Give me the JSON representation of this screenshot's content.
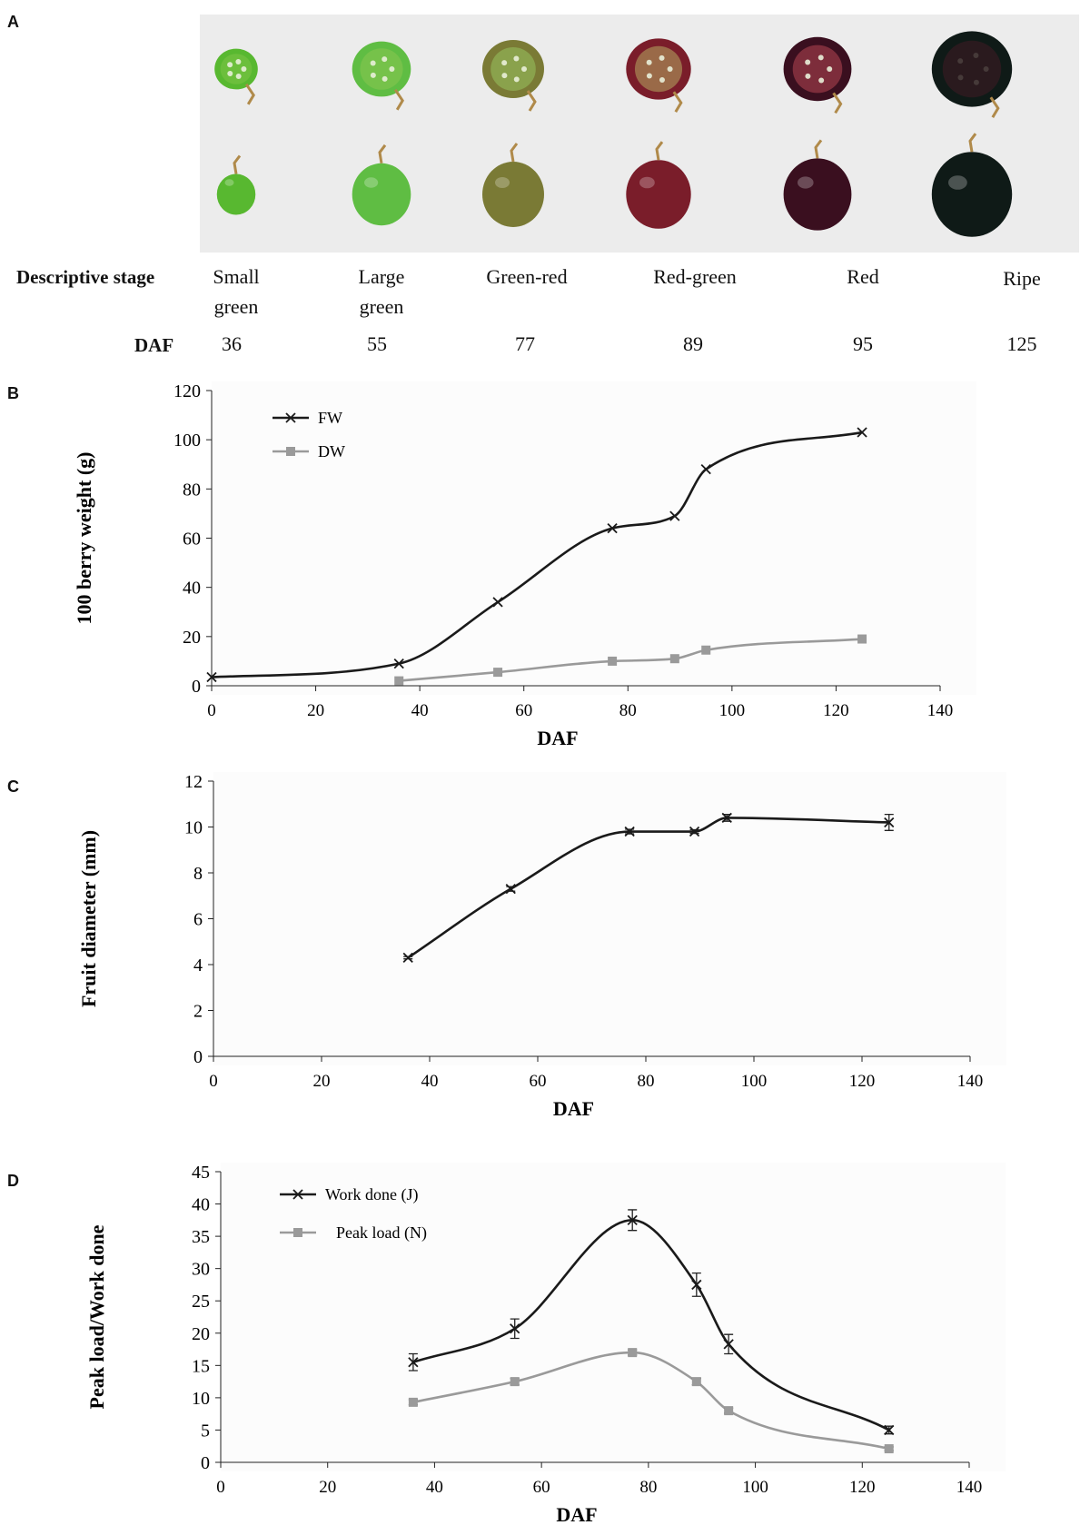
{
  "panel_labels": [
    "A",
    "B",
    "C",
    "D"
  ],
  "colors": {
    "black_series": "#1a1a1a",
    "gray_series": "#9a9a9a",
    "photo_bg": "#ececec"
  },
  "panelA": {
    "row_label_stage": "Descriptive stage",
    "row_label_daf": "DAF",
    "stages": [
      {
        "line1": "Small",
        "line2": "green",
        "daf": "36",
        "flesh": "#6cbf3c",
        "skin": "#58b830"
      },
      {
        "line1": "Large",
        "line2": "green",
        "daf": "55",
        "flesh": "#76c24a",
        "skin": "#5fbd43"
      },
      {
        "line1": "Green-red",
        "line2": "",
        "daf": "77",
        "flesh": "#8aa24c",
        "skin": "#7a7a35"
      },
      {
        "line1": "Red-green",
        "line2": "",
        "daf": "89",
        "flesh": "#9a6a48",
        "skin": "#7a1d2a"
      },
      {
        "line1": "Red",
        "line2": "",
        "daf": "95",
        "flesh": "#7d2d3b",
        "skin": "#3a0f1f"
      },
      {
        "line1": "Ripe",
        "line2": "",
        "daf": "125",
        "flesh": "#2a1a1e",
        "skin": "#0f1a17"
      }
    ]
  },
  "chart_data": [
    {
      "type": "line",
      "panel": "B",
      "xlabel": "DAF",
      "ylabel": "100 berry weight (g)",
      "xlim": [
        0,
        140
      ],
      "ylim": [
        0,
        120
      ],
      "xticks": [
        "0",
        "20",
        "40",
        "60",
        "80",
        "100",
        "120",
        "140"
      ],
      "yticks": [
        "0",
        "20",
        "40",
        "60",
        "80",
        "100",
        "120"
      ],
      "legend_position": "top-left",
      "series": [
        {
          "name": "FW",
          "marker": "x",
          "color": "#1a1a1a",
          "x": [
            0,
            36,
            55,
            77,
            89,
            95,
            125
          ],
          "y": [
            3.5,
            9,
            34,
            64,
            69,
            88,
            103
          ]
        },
        {
          "name": "DW",
          "marker": "square",
          "color": "#9a9a9a",
          "x": [
            36,
            55,
            77,
            89,
            95,
            125
          ],
          "y": [
            2,
            5.5,
            10,
            11,
            14.5,
            19
          ]
        }
      ]
    },
    {
      "type": "line",
      "panel": "C",
      "xlabel": "DAF",
      "ylabel": "Fruit diameter (mm)",
      "xlim": [
        0,
        140
      ],
      "ylim": [
        0,
        12
      ],
      "xticks": [
        "0",
        "20",
        "40",
        "60",
        "80",
        "100",
        "120",
        "140"
      ],
      "yticks": [
        "0",
        "2",
        "4",
        "6",
        "8",
        "10",
        "12"
      ],
      "series": [
        {
          "name": "Fruit diameter",
          "marker": "x",
          "color": "#1a1a1a",
          "x": [
            36,
            55,
            77,
            89,
            95,
            125
          ],
          "y": [
            4.3,
            7.3,
            9.8,
            9.8,
            10.4,
            10.2
          ],
          "err": [
            0.05,
            0.1,
            0.1,
            0.08,
            0.15,
            0.35
          ]
        }
      ]
    },
    {
      "type": "line",
      "panel": "D",
      "xlabel": "DAF",
      "ylabel": "Peak load/Work  done",
      "xlim": [
        0,
        140
      ],
      "ylim": [
        0,
        45
      ],
      "xticks": [
        "0",
        "20",
        "40",
        "60",
        "80",
        "100",
        "120",
        "140"
      ],
      "yticks": [
        "0",
        "5",
        "10",
        "15",
        "20",
        "25",
        "30",
        "35",
        "40",
        "45"
      ],
      "legend_position": "top-left",
      "series": [
        {
          "name": "Work done (J)",
          "marker": "x",
          "color": "#1a1a1a",
          "x": [
            36,
            55,
            77,
            89,
            95,
            125
          ],
          "y": [
            15.5,
            20.7,
            37.5,
            27.5,
            18.3,
            5
          ],
          "err": [
            1.3,
            1.5,
            1.6,
            1.8,
            1.5,
            0.6
          ]
        },
        {
          "name": "Peak load (N)",
          "marker": "square",
          "color": "#9a9a9a",
          "x": [
            36,
            55,
            77,
            89,
            95,
            125
          ],
          "y": [
            9.3,
            12.5,
            17,
            12.5,
            8,
            2.1
          ],
          "err": [
            0.4,
            0.5,
            0.4,
            0.5,
            0.4,
            0.3
          ]
        }
      ]
    }
  ]
}
